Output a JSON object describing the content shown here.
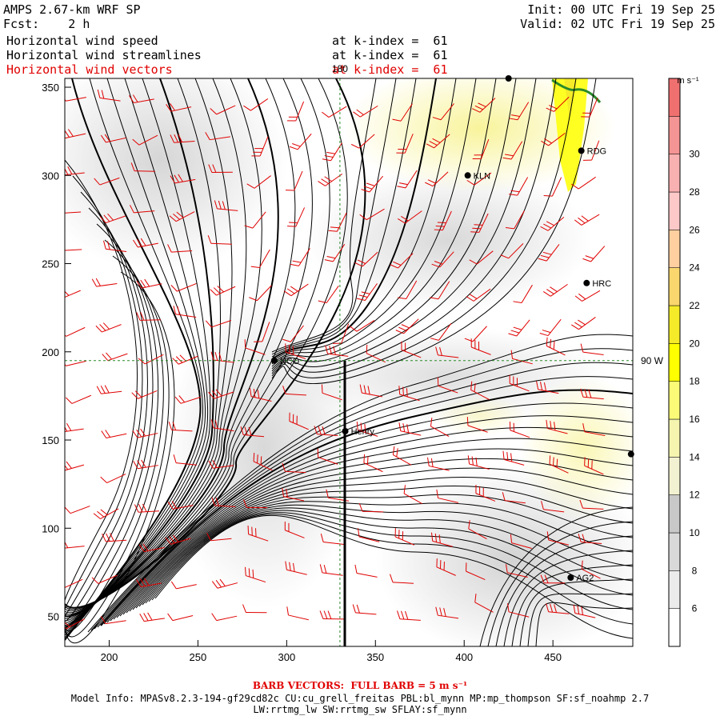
{
  "header": {
    "model_title": "AMPS 2.67-km WRF SP",
    "forecast_label": "Fcst:",
    "forecast_value": "2 h",
    "init_label": "Init:",
    "init_value": "00 UTC Fri 19 Sep 25",
    "valid_label": "Valid:",
    "valid_value": "02 UTC Fri 19 Sep 25"
  },
  "fields": [
    {
      "name": "Horizontal wind speed",
      "level": "at k-index =  61",
      "color": "#000000"
    },
    {
      "name": "Horizontal wind streamlines",
      "level": "at k-index =  61",
      "color": "#000000"
    },
    {
      "name": "Horizontal wind vectors",
      "level": "at k-index =  61",
      "color": "#e00000"
    }
  ],
  "map": {
    "x_range": [
      175,
      495
    ],
    "y_range": [
      33,
      355
    ],
    "x_ticks": [
      200,
      250,
      300,
      350,
      400,
      450
    ],
    "y_ticks": [
      50,
      100,
      150,
      200,
      250,
      300,
      350
    ],
    "meridian_label": "180",
    "parallel_label": "90 W",
    "meridian_x": 330,
    "parallel_y": 195,
    "stations": [
      {
        "label": "RDG",
        "x": 466,
        "y": 314
      },
      {
        "label": "KLN",
        "x": 402,
        "y": 300
      },
      {
        "label": "HRC",
        "x": 469,
        "y": 239
      },
      {
        "label": "NCO",
        "x": 293,
        "y": 195
      },
      {
        "label": "Henry",
        "x": 333,
        "y": 155
      },
      {
        "label": "AG2",
        "x": 460,
        "y": 72
      },
      {
        "label": "",
        "x": 494,
        "y": 142
      },
      {
        "label": "",
        "x": 425,
        "y": 355
      }
    ]
  },
  "colorbar": {
    "unit": "m s⁻¹",
    "levels": [
      6,
      8,
      10,
      12,
      14,
      16,
      18,
      20,
      22,
      24,
      26,
      28,
      30
    ],
    "colors": [
      "#ffffff",
      "#ebebeb",
      "#d9d9d9",
      "#c8c8c8",
      "#f2f2d2",
      "#f5f5b0",
      "#fbfb78",
      "#ffff00",
      "#f5eb28",
      "#fad76e",
      "#ffcfa0",
      "#fdc8c8",
      "#f8b0b0",
      "#f49494",
      "#f07070"
    ]
  },
  "footer": {
    "barb_note": "BARB VECTORS:  FULL BARB = 5 m s⁻¹",
    "model_info": "Model Info: MPASv8.2.3-194-gf29cd82c CU:cu_grell_freitas PBL:bl_mynn MP:mp_thompson SF:sf_noahmp 2.7",
    "model_info_2": "LW:rrtmg_lw SW:rrtmg_sw SFLAY:sf_mynn"
  }
}
